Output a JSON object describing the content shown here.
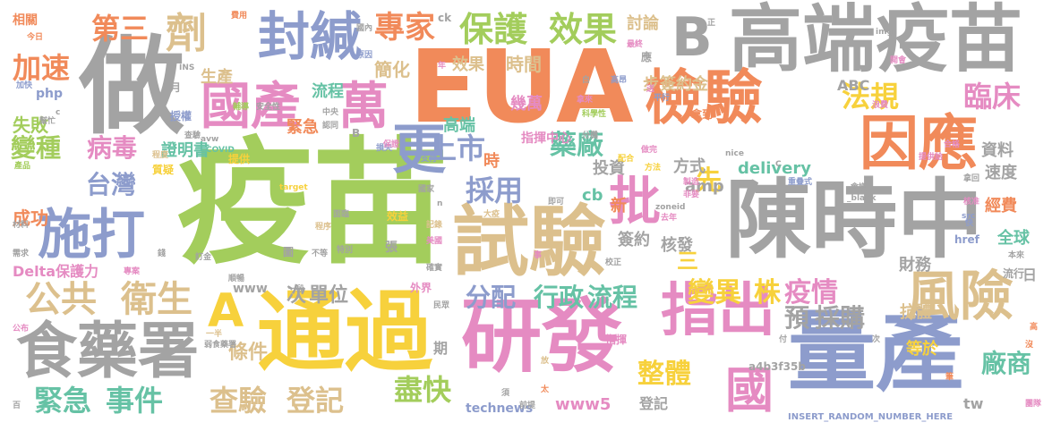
{
  "palette": {
    "gray": "#a3a3a3",
    "green": "#a3cd5c",
    "orange": "#f18a5a",
    "pink": "#e58bc2",
    "blue": "#8d9ccc",
    "yellow": "#f7d13c",
    "tan": "#dcc08d",
    "teal": "#66c2a5"
  },
  "words": [
    {
      "text": "疫苗",
      "color": "green"
    },
    {
      "text": "EUA",
      "color": "orange"
    },
    {
      "text": "陳時中",
      "color": "gray"
    },
    {
      "text": "做",
      "color": "gray"
    },
    {
      "text": "通過",
      "color": "yellow"
    },
    {
      "text": "量產",
      "color": "blue"
    },
    {
      "text": "試驗",
      "color": "tan"
    },
    {
      "text": "研發",
      "color": "pink"
    },
    {
      "text": "高端疫苗",
      "color": "gray"
    },
    {
      "text": "檢驗",
      "color": "orange"
    },
    {
      "text": "因應",
      "color": "orange"
    },
    {
      "text": "食藥署",
      "color": "gray"
    },
    {
      "text": "風險",
      "color": "tan"
    },
    {
      "text": "指出",
      "color": "pink"
    },
    {
      "text": "施打",
      "color": "blue"
    },
    {
      "text": "封緘",
      "color": "blue"
    },
    {
      "text": "國產",
      "color": "pink"
    },
    {
      "text": "萬",
      "color": "pink"
    },
    {
      "text": "更",
      "color": "blue"
    },
    {
      "text": "批",
      "color": "pink"
    },
    {
      "text": "劑",
      "color": "tan"
    },
    {
      "text": "B",
      "color": "gray"
    },
    {
      "text": "A",
      "color": "yellow"
    },
    {
      "text": "國",
      "color": "pink"
    },
    {
      "text": "公共",
      "color": "tan"
    },
    {
      "text": "衛生",
      "color": "tan"
    },
    {
      "text": "保護",
      "color": "green"
    },
    {
      "text": "效果",
      "color": "green"
    },
    {
      "text": "專家",
      "color": "orange"
    },
    {
      "text": "第三",
      "color": "orange"
    },
    {
      "text": "加速",
      "color": "orange"
    },
    {
      "text": "法規",
      "color": "yellow"
    },
    {
      "text": "臨床",
      "color": "pink"
    },
    {
      "text": "上市",
      "color": "blue"
    },
    {
      "text": "藥廠",
      "color": "teal"
    },
    {
      "text": "台灣",
      "color": "blue"
    },
    {
      "text": "變種",
      "color": "green"
    },
    {
      "text": "病毒",
      "color": "pink"
    },
    {
      "text": "採用",
      "color": "blue"
    },
    {
      "text": "先",
      "color": "yellow"
    },
    {
      "text": "緊急",
      "color": "teal"
    },
    {
      "text": "事件",
      "color": "teal"
    },
    {
      "text": "查驗",
      "color": "tan"
    },
    {
      "text": "登記",
      "color": "tan"
    },
    {
      "text": "盡快",
      "color": "green"
    },
    {
      "text": "整體",
      "color": "yellow"
    },
    {
      "text": "變異",
      "color": "yellow"
    },
    {
      "text": "株",
      "color": "yellow"
    },
    {
      "text": "疫情",
      "color": "pink"
    },
    {
      "text": "行政",
      "color": "teal"
    },
    {
      "text": "流程",
      "color": "teal"
    },
    {
      "text": "分配",
      "color": "blue"
    },
    {
      "text": "預",
      "color": "gray"
    },
    {
      "text": "採購",
      "color": "gray"
    },
    {
      "text": "廠商",
      "color": "teal"
    },
    {
      "text": "流程",
      "color": "teal"
    },
    {
      "text": "證明書",
      "color": "teal"
    },
    {
      "text": "成功",
      "color": "orange"
    },
    {
      "text": "失敗",
      "color": "green"
    },
    {
      "text": "生產",
      "color": "tan"
    },
    {
      "text": "簡化",
      "color": "tan"
    },
    {
      "text": "時間",
      "color": "tan"
    },
    {
      "text": "效果",
      "color": "tan"
    },
    {
      "text": "討論",
      "color": "tan"
    },
    {
      "text": "簽約金",
      "color": "tan"
    },
    {
      "text": "步",
      "color": "tan"
    },
    {
      "text": "高端",
      "color": "teal"
    },
    {
      "text": "幾萬",
      "color": "pink"
    },
    {
      "text": "指揮中心",
      "color": "pink"
    },
    {
      "text": "緊急",
      "color": "orange"
    },
    {
      "text": "時",
      "color": "orange"
    },
    {
      "text": "投資",
      "color": "gray"
    },
    {
      "text": "方式",
      "color": "gray"
    },
    {
      "text": "資料",
      "color": "gray"
    },
    {
      "text": "速度",
      "color": "gray"
    },
    {
      "text": "經費",
      "color": "orange"
    },
    {
      "text": "delivery",
      "color": "teal"
    },
    {
      "text": "amp",
      "color": "gray"
    },
    {
      "text": "cb",
      "color": "teal"
    },
    {
      "text": "新",
      "color": "orange"
    },
    {
      "text": "三",
      "color": "yellow"
    },
    {
      "text": "簽約",
      "color": "gray"
    },
    {
      "text": "核發",
      "color": "gray"
    },
    {
      "text": "財務",
      "color": "gray"
    },
    {
      "text": "全球",
      "color": "teal"
    },
    {
      "text": "抗體",
      "color": "tan"
    },
    {
      "text": "次",
      "color": "gray"
    },
    {
      "text": "單位",
      "color": "gray"
    },
    {
      "text": "www",
      "color": "gray"
    },
    {
      "text": "Delta",
      "color": "pink"
    },
    {
      "text": "保護力",
      "color": "pink"
    },
    {
      "text": "條件",
      "color": "tan"
    },
    {
      "text": "等於",
      "color": "yellow"
    },
    {
      "text": "ABC",
      "color": "gray"
    },
    {
      "text": "php",
      "color": "blue"
    },
    {
      "text": "technews",
      "color": "blue"
    },
    {
      "text": "www5",
      "color": "pink"
    },
    {
      "text": "登記",
      "color": "gray"
    },
    {
      "text": "tw",
      "color": "gray"
    },
    {
      "text": "a4b3f35b",
      "color": "gray"
    },
    {
      "text": "INSERT_RANDOM_NUMBER_HERE",
      "color": "blue"
    },
    {
      "text": "月",
      "color": "gray"
    },
    {
      "text": "授權",
      "color": "blue"
    },
    {
      "text": "應",
      "color": "gray"
    },
    {
      "text": "相關",
      "color": "orange"
    },
    {
      "text": "今日",
      "color": "orange"
    },
    {
      "text": "加快",
      "color": "blue"
    },
    {
      "text": "輔導",
      "color": "green"
    },
    {
      "text": "安全性",
      "color": "gray"
    },
    {
      "text": "中央",
      "color": "gray"
    },
    {
      "text": "認同",
      "color": "gray"
    },
    {
      "text": "B",
      "color": "gray"
    },
    {
      "text": "COVID",
      "color": "teal"
    },
    {
      "text": "提供",
      "color": "yellow"
    },
    {
      "text": "產品",
      "color": "green"
    },
    {
      "text": "質疑",
      "color": "yellow"
    },
    {
      "text": "程度",
      "color": "tan"
    },
    {
      "text": "材料",
      "color": "gray"
    },
    {
      "text": "需求",
      "color": "gray"
    },
    {
      "text": "專案",
      "color": "pink"
    },
    {
      "text": "訂金",
      "color": "gray"
    },
    {
      "text": "順暢",
      "color": "gray"
    },
    {
      "text": "弱食藥署",
      "color": "gray"
    },
    {
      "text": "一半",
      "color": "tan"
    },
    {
      "text": "公布",
      "color": "pink"
    },
    {
      "text": "百",
      "color": "gray"
    },
    {
      "text": "面臨",
      "color": "gray"
    },
    {
      "text": "效益",
      "color": "yellow"
    },
    {
      "text": "記錄",
      "color": "tan"
    },
    {
      "text": "美國",
      "color": "pink"
    },
    {
      "text": "確實",
      "color": "gray"
    },
    {
      "text": "校正",
      "color": "gray"
    },
    {
      "text": "前提",
      "color": "gray"
    },
    {
      "text": "外界",
      "color": "pink"
    },
    {
      "text": "民眾",
      "color": "gray"
    },
    {
      "text": "指揮",
      "color": "pink"
    },
    {
      "text": "期",
      "color": "gray"
    },
    {
      "text": "拿到",
      "color": "orange"
    },
    {
      "text": "製造",
      "color": "pink"
    },
    {
      "text": "非要",
      "color": "pink"
    },
    {
      "text": "配合",
      "color": "yellow"
    },
    {
      "text": "方法",
      "color": "yellow"
    },
    {
      "text": "損失",
      "color": "blue"
    },
    {
      "text": "保證",
      "color": "pink"
    },
    {
      "text": "支付",
      "color": "blue"
    },
    {
      "text": "分攤",
      "color": "gray"
    },
    {
      "text": "科學性",
      "color": "green"
    },
    {
      "text": "做完",
      "color": "pink"
    },
    {
      "text": "重疊式",
      "color": "blue"
    },
    {
      "text": "會議",
      "color": "gray"
    },
    {
      "text": "提供給",
      "color": "pink"
    },
    {
      "text": "合格",
      "color": "pink"
    },
    {
      "text": "拿回",
      "color": "gray"
    },
    {
      "text": "核准",
      "color": "pink"
    },
    {
      "text": "src",
      "color": "blue"
    },
    {
      "text": "href",
      "color": "blue"
    },
    {
      "text": "本來",
      "color": "gray"
    },
    {
      "text": "流行",
      "color": "gray"
    },
    {
      "text": "日",
      "color": "gray"
    },
    {
      "text": "團隊",
      "color": "pink"
    },
    {
      "text": "沒",
      "color": "orange"
    },
    {
      "text": "高",
      "color": "orange"
    },
    {
      "text": "國內",
      "color": "gray"
    },
    {
      "text": "原因",
      "color": "blue"
    },
    {
      "text": "費用",
      "color": "orange"
    },
    {
      "text": "最終",
      "color": "pink"
    },
    {
      "text": "平行",
      "color": "blue"
    },
    {
      "text": "高昂",
      "color": "blue"
    },
    {
      "text": "浪費",
      "color": "pink"
    },
    {
      "text": "開會",
      "color": "pink"
    },
    {
      "text": "img",
      "color": "gray"
    },
    {
      "text": "正",
      "color": "gray"
    },
    {
      "text": "ck",
      "color": "gray"
    },
    {
      "text": "年",
      "color": "pink"
    },
    {
      "text": "白",
      "color": "gray"
    },
    {
      "text": "拿來",
      "color": "pink"
    },
    {
      "text": "送",
      "color": "pink"
    },
    {
      "text": "nice",
      "color": "gray"
    },
    {
      "text": "target",
      "color": "yellow"
    },
    {
      "text": "_blank",
      "color": "gray"
    },
    {
      "text": "zoneid",
      "color": "gray"
    },
    {
      "text": "去年",
      "color": "pink"
    },
    {
      "text": "大疫",
      "color": "tan"
    },
    {
      "text": "即可",
      "color": "gray"
    },
    {
      "text": "國家",
      "color": "gray"
    },
    {
      "text": "圖",
      "color": "gray"
    },
    {
      "text": "不等",
      "color": "gray"
    },
    {
      "text": "特別",
      "color": "gray"
    },
    {
      "text": "張",
      "color": "gray"
    },
    {
      "text": "程序",
      "color": "tan"
    },
    {
      "text": "錢",
      "color": "gray"
    },
    {
      "text": "一段",
      "color": "gray"
    },
    {
      "text": "事",
      "color": "pink"
    },
    {
      "text": "放",
      "color": "tan"
    },
    {
      "text": "須",
      "color": "gray"
    },
    {
      "text": "太",
      "color": "orange"
    },
    {
      "text": "筆",
      "color": "orange"
    },
    {
      "text": "付",
      "color": "gray"
    },
    {
      "text": "次",
      "color": "gray"
    },
    {
      "text": "快",
      "color": "blue"
    },
    {
      "text": "INS",
      "color": "gray"
    },
    {
      "text": "avw",
      "color": "gray"
    },
    {
      "text": "c",
      "color": "gray"
    },
    {
      "text": "n",
      "color": "gray"
    },
    {
      "text": "C",
      "color": "gray"
    },
    {
      "text": "查驗",
      "color": "gray"
    },
    {
      "text": "幫忙",
      "color": "gray"
    }
  ]
}
